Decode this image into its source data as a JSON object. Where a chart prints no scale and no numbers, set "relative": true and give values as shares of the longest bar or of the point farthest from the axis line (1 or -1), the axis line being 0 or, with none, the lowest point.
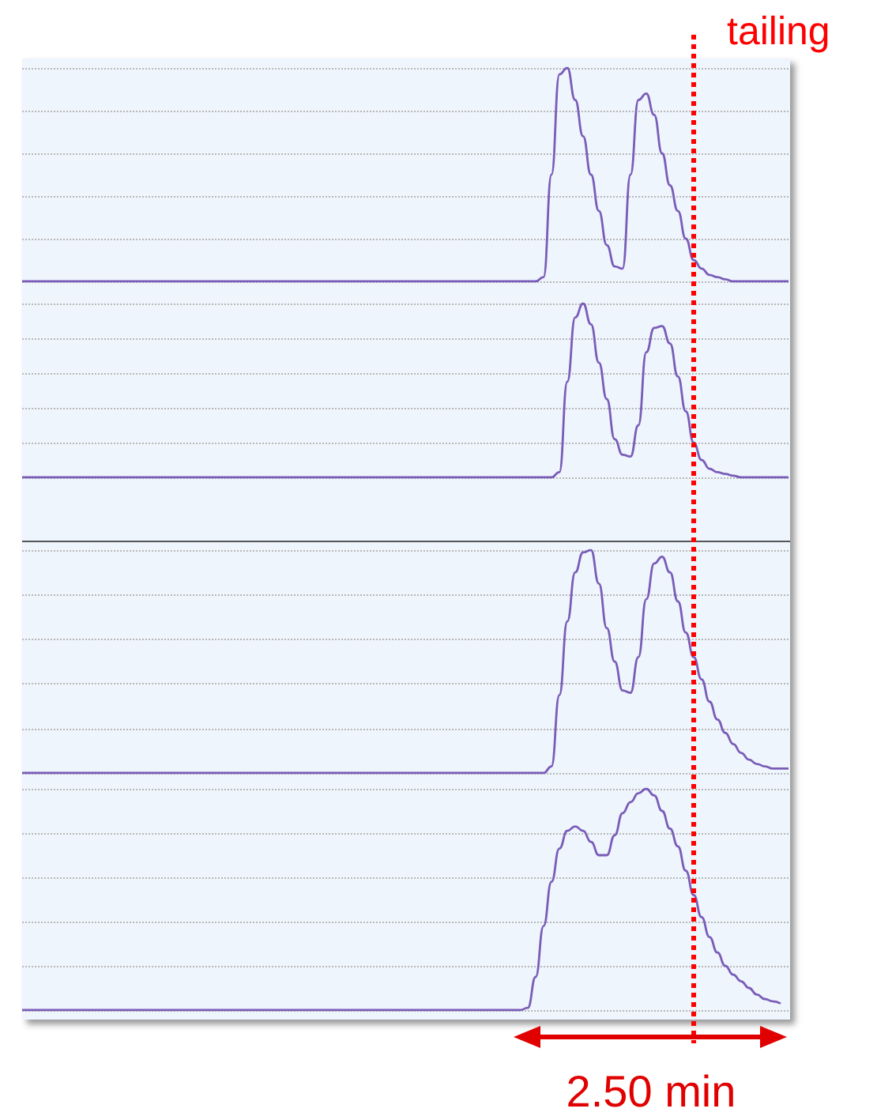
{
  "chart_data": [
    {
      "type": "line",
      "relative": true,
      "grid": "y",
      "annotations": [
        "tailing"
      ],
      "categories": [
        null,
        null,
        null,
        null,
        null,
        null,
        null,
        null,
        null,
        null,
        null,
        null,
        null,
        null,
        null,
        null,
        null,
        null,
        null,
        null,
        null,
        null,
        null,
        null,
        null,
        null,
        null,
        null,
        null,
        null,
        null,
        null,
        null,
        null,
        null,
        null,
        null,
        null,
        null,
        null,
        null,
        null,
        null,
        null,
        null,
        null,
        null,
        null,
        null,
        null,
        null,
        null,
        null,
        null,
        null,
        null,
        null,
        null,
        null,
        null,
        null,
        null,
        null,
        null,
        null,
        null,
        null,
        null,
        null,
        null,
        null,
        null,
        null,
        null,
        null,
        null,
        null,
        null,
        null,
        null,
        null,
        null,
        null,
        null,
        null,
        null,
        null,
        null,
        null,
        null,
        null,
        null,
        null,
        null,
        null,
        null,
        null,
        null
      ],
      "series": [
        {
          "color": "#7a5cb8",
          "values": [
            0,
            0,
            0,
            0,
            0,
            0,
            0,
            0,
            0,
            0,
            0,
            0,
            0,
            0,
            0,
            0,
            0,
            0,
            0,
            0,
            0,
            0,
            0,
            0,
            0,
            0,
            0,
            0,
            0,
            0,
            0,
            0,
            0,
            0,
            0,
            0,
            0,
            0,
            0,
            0,
            0,
            0,
            0,
            0,
            0,
            0,
            0,
            0,
            0,
            0,
            0,
            0,
            0,
            0,
            0,
            0,
            0,
            0,
            0,
            0,
            0,
            0,
            0,
            0,
            0,
            0,
            0.02,
            0.5,
            0.97,
            1.0,
            0.85,
            0.68,
            0.5,
            0.33,
            0.17,
            0.07,
            0.06,
            0.5,
            0.85,
            0.88,
            0.78,
            0.6,
            0.45,
            0.33,
            0.2,
            0.1,
            0.06,
            0.03,
            0.02,
            0.01,
            0,
            0,
            0,
            0,
            0,
            0,
            0,
            0
          ]
        }
      ]
    },
    {
      "type": "line",
      "relative": true,
      "grid": "y",
      "categories": [
        null,
        null,
        null,
        null,
        null,
        null,
        null,
        null,
        null,
        null,
        null,
        null,
        null,
        null,
        null,
        null,
        null,
        null,
        null,
        null,
        null,
        null,
        null,
        null,
        null,
        null,
        null,
        null,
        null,
        null,
        null,
        null,
        null,
        null,
        null,
        null,
        null,
        null,
        null,
        null,
        null,
        null,
        null,
        null,
        null,
        null,
        null,
        null,
        null,
        null,
        null,
        null,
        null,
        null,
        null,
        null,
        null,
        null,
        null,
        null,
        null,
        null,
        null,
        null,
        null,
        null,
        null,
        null,
        null,
        null,
        null,
        null,
        null,
        null,
        null,
        null,
        null,
        null,
        null,
        null,
        null,
        null,
        null,
        null,
        null,
        null,
        null,
        null,
        null,
        null,
        null,
        null,
        null,
        null,
        null,
        null,
        null,
        null
      ],
      "series": [
        {
          "color": "#7a5cb8",
          "values": [
            0,
            0,
            0,
            0,
            0,
            0,
            0,
            0,
            0,
            0,
            0,
            0,
            0,
            0,
            0,
            0,
            0,
            0,
            0,
            0,
            0,
            0,
            0,
            0,
            0,
            0,
            0,
            0,
            0,
            0,
            0,
            0,
            0,
            0,
            0,
            0,
            0,
            0,
            0,
            0,
            0,
            0,
            0,
            0,
            0,
            0,
            0,
            0,
            0,
            0,
            0,
            0,
            0,
            0,
            0,
            0,
            0,
            0,
            0,
            0,
            0,
            0,
            0,
            0,
            0,
            0,
            0,
            0,
            0.03,
            0.55,
            0.92,
            1.0,
            0.88,
            0.66,
            0.45,
            0.22,
            0.13,
            0.12,
            0.3,
            0.72,
            0.86,
            0.87,
            0.77,
            0.58,
            0.38,
            0.2,
            0.1,
            0.05,
            0.03,
            0.02,
            0.01,
            0,
            0,
            0,
            0,
            0,
            0,
            0
          ]
        }
      ]
    },
    {
      "type": "line",
      "relative": true,
      "grid": "y",
      "categories": [
        null,
        null,
        null,
        null,
        null,
        null,
        null,
        null,
        null,
        null,
        null,
        null,
        null,
        null,
        null,
        null,
        null,
        null,
        null,
        null,
        null,
        null,
        null,
        null,
        null,
        null,
        null,
        null,
        null,
        null,
        null,
        null,
        null,
        null,
        null,
        null,
        null,
        null,
        null,
        null,
        null,
        null,
        null,
        null,
        null,
        null,
        null,
        null,
        null,
        null,
        null,
        null,
        null,
        null,
        null,
        null,
        null,
        null,
        null,
        null,
        null,
        null,
        null,
        null,
        null,
        null,
        null,
        null,
        null,
        null,
        null,
        null,
        null,
        null,
        null,
        null,
        null,
        null,
        null,
        null,
        null,
        null,
        null,
        null,
        null,
        null,
        null,
        null,
        null,
        null,
        null,
        null,
        null,
        null,
        null,
        null,
        null,
        null
      ],
      "series": [
        {
          "color": "#7a5cb8",
          "values": [
            0,
            0,
            0,
            0,
            0,
            0,
            0,
            0,
            0,
            0,
            0,
            0,
            0,
            0,
            0,
            0,
            0,
            0,
            0,
            0,
            0,
            0,
            0,
            0,
            0,
            0,
            0,
            0,
            0,
            0,
            0,
            0,
            0,
            0,
            0,
            0,
            0,
            0,
            0,
            0,
            0,
            0,
            0,
            0,
            0,
            0,
            0,
            0,
            0,
            0,
            0,
            0,
            0,
            0,
            0,
            0,
            0,
            0,
            0,
            0,
            0,
            0,
            0,
            0,
            0,
            0,
            0,
            0.03,
            0.35,
            0.68,
            0.9,
            0.99,
            1.0,
            0.85,
            0.65,
            0.5,
            0.37,
            0.36,
            0.52,
            0.78,
            0.94,
            0.97,
            0.9,
            0.77,
            0.63,
            0.52,
            0.42,
            0.32,
            0.24,
            0.18,
            0.13,
            0.09,
            0.06,
            0.04,
            0.03,
            0.02,
            0.02,
            0.02
          ]
        }
      ]
    },
    {
      "type": "line",
      "relative": true,
      "grid": "y",
      "annotations": [
        "2.50 min"
      ],
      "categories": [
        null,
        null,
        null,
        null,
        null,
        null,
        null,
        null,
        null,
        null,
        null,
        null,
        null,
        null,
        null,
        null,
        null,
        null,
        null,
        null,
        null,
        null,
        null,
        null,
        null,
        null,
        null,
        null,
        null,
        null,
        null,
        null,
        null,
        null,
        null,
        null,
        null,
        null,
        null,
        null,
        null,
        null,
        null,
        null,
        null,
        null,
        null,
        null,
        null,
        null,
        null,
        null,
        null,
        null,
        null,
        null,
        null,
        null,
        null,
        null,
        null,
        null,
        null,
        null,
        null,
        null,
        null,
        null,
        null,
        null,
        null,
        null,
        null,
        null,
        null,
        null,
        null,
        null,
        null,
        null,
        null,
        null,
        null,
        null,
        null,
        null,
        null,
        null,
        null,
        null,
        null,
        null,
        null,
        null,
        null,
        null,
        null,
        null
      ],
      "series": [
        {
          "color": "#7a5cb8",
          "values": [
            0,
            0,
            0,
            0,
            0,
            0,
            0,
            0,
            0,
            0,
            0,
            0,
            0,
            0,
            0,
            0,
            0,
            0,
            0,
            0,
            0,
            0,
            0,
            0,
            0,
            0,
            0,
            0,
            0,
            0,
            0,
            0,
            0,
            0,
            0,
            0,
            0,
            0,
            0,
            0,
            0,
            0,
            0,
            0,
            0,
            0,
            0,
            0,
            0,
            0,
            0,
            0,
            0,
            0,
            0,
            0,
            0,
            0,
            0,
            0,
            0,
            0,
            0,
            0,
            0.01,
            0.15,
            0.38,
            0.58,
            0.73,
            0.81,
            0.83,
            0.81,
            0.76,
            0.7,
            0.7,
            0.79,
            0.89,
            0.94,
            0.98,
            1.0,
            0.97,
            0.9,
            0.82,
            0.74,
            0.63,
            0.52,
            0.42,
            0.33,
            0.26,
            0.2,
            0.16,
            0.13,
            0.1,
            0.07,
            0.05,
            0.04,
            0.03,
            null
          ]
        }
      ]
    }
  ]
}
